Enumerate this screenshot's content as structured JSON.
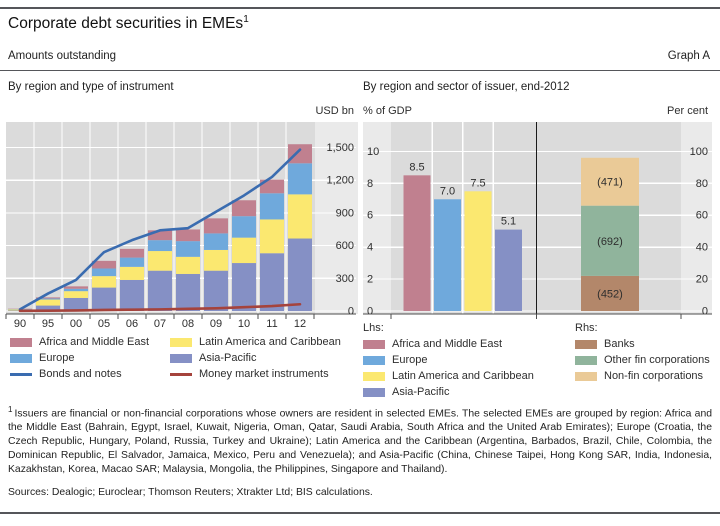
{
  "header": {
    "title": "Corporate debt securities in EMEs",
    "title_sup": "1",
    "subtitle": "Amounts outstanding",
    "graph_label": "Graph A"
  },
  "colors": {
    "africa": "#c0808f",
    "europe": "#6fa9dc",
    "latam": "#fbe870",
    "asia": "#8590c5",
    "bonds_line": "#3a6cb0",
    "mmi_line": "#a5433c",
    "banks": "#b3876a",
    "other_fin": "#90b49c",
    "non_fin": "#eaca97",
    "plot_bg": "#dbdbdb",
    "strip_bg": "#eaeaea",
    "grid": "#ffffff",
    "axis": "#4d4d4d"
  },
  "left_legend": {
    "items": [
      {
        "label": "Africa and Middle East",
        "type": "box",
        "color": "#c0808f"
      },
      {
        "label": "Latin America and Caribbean",
        "type": "box",
        "color": "#fbe870"
      },
      {
        "label": "Europe",
        "type": "box",
        "color": "#6fa9dc"
      },
      {
        "label": "Asia-Pacific",
        "type": "box",
        "color": "#8590c5"
      },
      {
        "label": "Bonds and notes",
        "type": "line",
        "color": "#3a6cb0"
      },
      {
        "label": "Money market instruments",
        "type": "line",
        "color": "#a5433c"
      }
    ]
  },
  "right_legend": {
    "lhs_header": "Lhs:",
    "rhs_header": "Rhs:",
    "lhs_items": [
      {
        "label": "Africa and Middle East",
        "color": "#c0808f"
      },
      {
        "label": "Europe",
        "color": "#6fa9dc"
      },
      {
        "label": "Latin America and Caribbean",
        "color": "#fbe870"
      },
      {
        "label": "Asia-Pacific",
        "color": "#8590c5"
      }
    ],
    "rhs_items": [
      {
        "label": "Banks",
        "color": "#b3876a"
      },
      {
        "label": "Other fin corporations",
        "color": "#90b49c"
      },
      {
        "label": "Non-fin corporations",
        "color": "#eaca97"
      }
    ]
  },
  "footnote": {
    "marker": "1",
    "text": "Issuers are financial or non-financial corporations whose owners are resident in selected EMEs. The selected EMEs are grouped by region: Africa and the Middle East (Bahrain, Egypt, Israel, Kuwait, Nigeria, Oman, Qatar, Saudi Arabia, South Africa and the United Arab Emirates); Europe (Croatia, the Czech Republic, Hungary, Poland, Russia, Turkey and Ukraine); Latin America and the Caribbean (Argentina, Barbados, Brazil, Chile, Colombia, the Dominican Republic, El Salvador, Jamaica, Mexico, Peru and Venezuela); and Asia-Pacific (China, Chinese Taipei, Hong Kong SAR, India, Indonesia, Kazakhstan, Korea, Macao SAR; Malaysia, Mongolia, the Philippines, Singapore and Thailand)."
  },
  "sources": "Sources: Dealogic; Euroclear; Thomson Reuters; Xtrakter Ltd; BIS calculations.",
  "chart_data": [
    {
      "type": "bar",
      "stacked": true,
      "title": "By region and type of instrument",
      "unit_label": "USD bn",
      "axis_side": "right",
      "grid": true,
      "categories": [
        "90",
        "95",
        "00",
        "05",
        "06",
        "07",
        "08",
        "09",
        "10",
        "11",
        "12"
      ],
      "series": [
        {
          "name": "Asia-Pacific",
          "color": "#8590c5",
          "values": [
            5,
            50,
            120,
            215,
            285,
            370,
            340,
            370,
            440,
            530,
            665
          ]
        },
        {
          "name": "Latin America and Caribbean",
          "color": "#fbe870",
          "values": [
            10,
            55,
            62,
            105,
            120,
            180,
            157,
            190,
            233,
            310,
            405
          ]
        },
        {
          "name": "Europe",
          "color": "#6fa9dc",
          "values": [
            3,
            10,
            22,
            70,
            85,
            100,
            144,
            152,
            197,
            240,
            285
          ]
        },
        {
          "name": "Africa and Middle East",
          "color": "#c0808f",
          "values": [
            3,
            10,
            22,
            70,
            80,
            90,
            107,
            138,
            146,
            125,
            175
          ]
        }
      ],
      "line_series": [
        {
          "name": "Bonds and notes",
          "color": "#3a6cb0",
          "values": [
            15,
            160,
            285,
            540,
            650,
            740,
            760,
            910,
            1060,
            1230,
            1480
          ]
        },
        {
          "name": "Money market instruments",
          "color": "#a5433c",
          "values": [
            2,
            3,
            5,
            10,
            12,
            15,
            20,
            25,
            35,
            45,
            62
          ]
        }
      ],
      "ylim": [
        0,
        1500
      ],
      "ytick_step": 300,
      "ytick_labels": [
        "0",
        "300",
        "600",
        "900",
        "1,200",
        "1,500"
      ]
    },
    {
      "type": "bar",
      "title": "By region and sector of issuer, end-2012",
      "grid": true,
      "left_axis": {
        "label": "% of GDP",
        "ylim": [
          0,
          10
        ],
        "tick_labels": [
          "0",
          "2",
          "4",
          "6",
          "8",
          "10"
        ]
      },
      "right_axis": {
        "label": "Per cent",
        "ylim": [
          0,
          100
        ],
        "tick_labels": [
          "0",
          "20",
          "40",
          "60",
          "80",
          "100"
        ]
      },
      "gdp_bars": [
        {
          "name": "Africa and Middle East",
          "value": 8.5,
          "display": "8.5",
          "color": "#c0808f"
        },
        {
          "name": "Europe",
          "value": 7.0,
          "display": "7.0",
          "color": "#6fa9dc"
        },
        {
          "name": "Latin America and Caribbean",
          "value": 7.5,
          "display": "7.5",
          "color": "#fbe870"
        },
        {
          "name": "Asia-Pacific",
          "value": 5.1,
          "display": "5.1",
          "color": "#8590c5"
        }
      ],
      "sector_stack": [
        {
          "name": "Banks",
          "percent": 22,
          "amount_label": "(452)",
          "color": "#b3876a"
        },
        {
          "name": "Other fin corporations",
          "percent": 44,
          "amount_label": "(692)",
          "color": "#90b49c"
        },
        {
          "name": "Non-fin corporations",
          "percent": 30,
          "amount_label": "(471)",
          "color": "#eaca97"
        }
      ]
    }
  ]
}
